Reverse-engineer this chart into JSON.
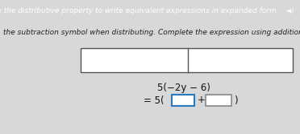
{
  "title_text": "Use the distributive property to write equivalent expressions in expanded form.  ◄)",
  "subtitle_text": "the subtraction symbol when distributing. Complete the expression using addition.  ◄)",
  "title_bg": "#5b3fa0",
  "body_bg": "#d8d8d8",
  "white_bg": "#f5f5f5",
  "title_color": "#ffffff",
  "subtitle_color": "#222222",
  "box1_border": "#2a7abf",
  "box2_border": "#888888",
  "table_border": "#555555",
  "font_size_title": 6.5,
  "font_size_subtitle": 6.5,
  "font_size_expr": 8.5
}
